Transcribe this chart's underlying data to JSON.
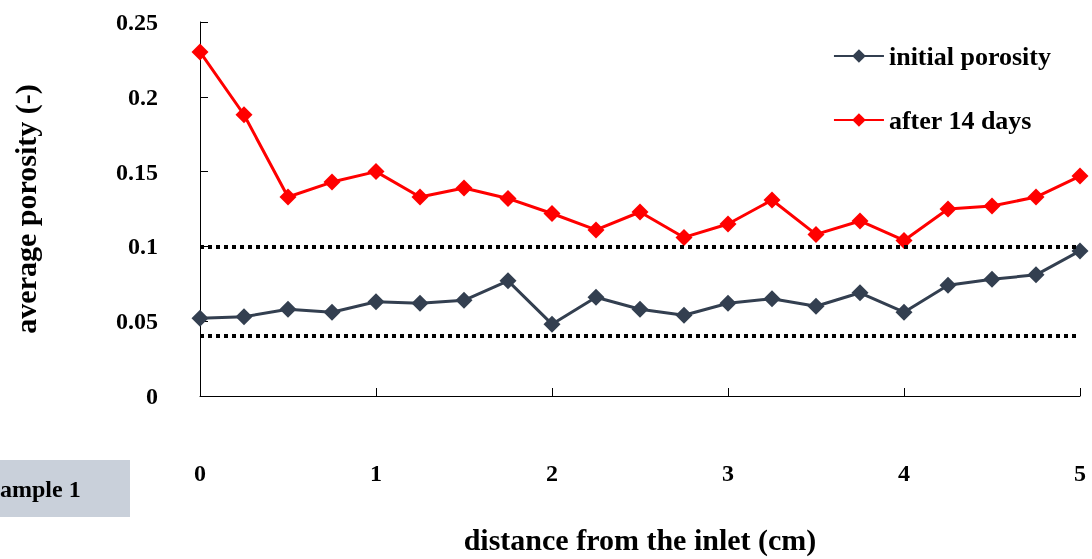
{
  "chart_data": {
    "type": "line",
    "xlabel": "distance from the inlet (cm)",
    "ylabel": "average porosity (-)",
    "x": [
      0,
      0.25,
      0.5,
      0.75,
      1,
      1.25,
      1.5,
      1.75,
      2,
      2.25,
      2.5,
      2.75,
      3,
      3.25,
      3.5,
      3.75,
      4,
      4.25,
      4.5,
      4.75,
      5
    ],
    "series": [
      {
        "name": "initial porosity",
        "color": "#333f50",
        "values": [
          0.052,
          0.053,
          0.058,
          0.056,
          0.063,
          0.062,
          0.064,
          0.077,
          0.048,
          0.066,
          0.058,
          0.054,
          0.062,
          0.065,
          0.06,
          0.069,
          0.056,
          0.074,
          0.078,
          0.081,
          0.097
        ]
      },
      {
        "name": "after 14 days",
        "color": "#ff0000",
        "values": [
          0.23,
          0.188,
          0.133,
          0.143,
          0.15,
          0.133,
          0.139,
          0.132,
          0.122,
          0.111,
          0.123,
          0.106,
          0.115,
          0.131,
          0.108,
          0.117,
          0.104,
          0.125,
          0.127,
          0.133,
          0.147
        ]
      }
    ],
    "xlim": [
      0,
      5
    ],
    "xticks": [
      0,
      1,
      2,
      3,
      4,
      5
    ],
    "ylim": [
      0,
      0.25
    ],
    "yticks": [
      0,
      0.05,
      0.1,
      0.15,
      0.2,
      0.25
    ],
    "ref_lines": [
      {
        "axis": "y",
        "value": 0.1,
        "color": "#000000",
        "line_style": "dotted"
      },
      {
        "axis": "y",
        "value": 0.04,
        "color": "#000000",
        "line_style": "dotted"
      }
    ],
    "annotations": [
      "ample 1"
    ],
    "marker": "diamond",
    "line_style": "solid",
    "grid": false,
    "legend": "top right"
  }
}
